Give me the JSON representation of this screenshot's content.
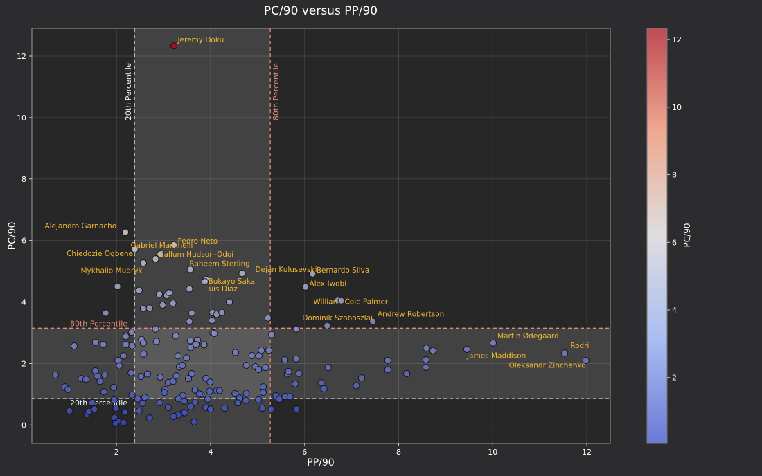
{
  "chart_data": {
    "type": "scatter",
    "title": "PC/90 versus PP/90",
    "xlabel": "PP/90",
    "ylabel": "PC/90",
    "xlim": [
      0.2,
      12.5
    ],
    "ylim": [
      -0.6,
      12.9
    ],
    "x_ticks": [
      2,
      4,
      6,
      8,
      10,
      12
    ],
    "y_ticks": [
      0,
      2,
      4,
      6,
      8,
      10,
      12
    ],
    "grid": true,
    "colorbar": {
      "label": "PC/90",
      "range": [
        0.05,
        12.33
      ],
      "ticks": [
        2,
        4,
        6,
        8,
        10,
        12
      ],
      "colormap": "coolwarm",
      "alpha": 0.8,
      "low_color": "#3b4cc0",
      "mid_color": "#dddddd",
      "high_color": "#b40426"
    },
    "thresholds": {
      "x_20th": 2.38,
      "x_80th": 5.27,
      "y_20th": 0.86,
      "y_80th": 3.15,
      "x_20th_label": "20th Percentile",
      "x_80th_label": "80th Percentile",
      "y_20th_label": "20th Percentile",
      "y_80th_label": "80th Percentile",
      "label_color_20th": "#f2f2f2",
      "label_color_80th": "#e08a7a",
      "line_color_20th": "#f2f2f2",
      "line_color_80th": "#e08a7a"
    },
    "label_color": "#f2b632",
    "labeled_points": [
      {
        "name": "Jeremy Doku",
        "x": 3.22,
        "y": 12.33,
        "label_x": 3.3,
        "label_y": 12.45,
        "anchor": "start"
      },
      {
        "name": "Alejandro Garnacho",
        "x": 2.19,
        "y": 6.27,
        "label_x": 2.0,
        "label_y": 6.4,
        "anchor": "end"
      },
      {
        "name": "Pedro Neto",
        "x": 3.22,
        "y": 5.86,
        "label_x": 3.3,
        "label_y": 5.9,
        "anchor": "start"
      },
      {
        "name": "Gabriel Martinelli",
        "x": 2.39,
        "y": 5.71,
        "label_x": 2.3,
        "label_y": 5.77,
        "anchor": "start"
      },
      {
        "name": "Chiedozie Ogbene",
        "x": 2.57,
        "y": 5.27,
        "label_x": 2.35,
        "label_y": 5.5,
        "anchor": "end"
      },
      {
        "name": "Callum Hudson-Odoi",
        "x": 2.93,
        "y": 5.56,
        "label_x": 2.9,
        "label_y": 5.48,
        "anchor": "start"
      },
      {
        "name": "Raheem Sterling",
        "x": 3.57,
        "y": 5.06,
        "label_x": 3.55,
        "label_y": 5.17,
        "anchor": "start"
      },
      {
        "name": "Dejan Kulusevski",
        "x": 4.67,
        "y": 4.93,
        "label_x": 4.95,
        "label_y": 4.98,
        "anchor": "start"
      },
      {
        "name": "Bernardo Silva",
        "x": 6.17,
        "y": 4.92,
        "label_x": 6.25,
        "label_y": 4.96,
        "anchor": "start"
      },
      {
        "name": "Mykhailo Mudryk",
        "x": 2.02,
        "y": 4.51,
        "label_x": 2.55,
        "label_y": 4.95,
        "anchor": "end"
      },
      {
        "name": "Bukayo Saka",
        "x": 3.9,
        "y": 4.74,
        "label_x": 3.95,
        "label_y": 4.6,
        "anchor": "start"
      },
      {
        "name": "Alex Iwobi",
        "x": 6.02,
        "y": 4.49,
        "label_x": 6.1,
        "label_y": 4.52,
        "anchor": "start"
      },
      {
        "name": "Luis Díaz",
        "x": 3.88,
        "y": 4.66,
        "label_x": 3.88,
        "label_y": 4.35,
        "anchor": "start"
      },
      {
        "name": "Willian",
        "x": 6.7,
        "y": 4.05,
        "label_x": 6.7,
        "label_y": 3.93,
        "anchor": "end"
      },
      {
        "name": "Cole Palmer",
        "x": 6.78,
        "y": 4.04,
        "label_x": 6.85,
        "label_y": 3.93,
        "anchor": "start"
      },
      {
        "name": "Andrew Robertson",
        "x": 7.45,
        "y": 3.37,
        "label_x": 7.55,
        "label_y": 3.53,
        "anchor": "start"
      },
      {
        "name": "Dominik Szoboszlai",
        "x": 6.48,
        "y": 3.23,
        "label_x": 5.95,
        "label_y": 3.4,
        "anchor": "start"
      },
      {
        "name": "Martin Ødegaard",
        "x": 10.01,
        "y": 2.67,
        "label_x": 10.1,
        "label_y": 2.82,
        "anchor": "start"
      },
      {
        "name": "Rodri",
        "x": 11.53,
        "y": 2.34,
        "label_x": 11.65,
        "label_y": 2.5,
        "anchor": "start"
      },
      {
        "name": "James Maddison",
        "x": 9.45,
        "y": 2.46,
        "label_x": 9.45,
        "label_y": 2.18,
        "anchor": "start"
      },
      {
        "name": "Oleksandr Zinchenko",
        "x": 11.98,
        "y": 2.1,
        "label_x": 11.98,
        "label_y": 1.86,
        "anchor": "end"
      }
    ],
    "points": [
      [
        3.22,
        12.33
      ],
      [
        2.19,
        6.27
      ],
      [
        3.22,
        5.86
      ],
      [
        2.39,
        5.71
      ],
      [
        2.57,
        5.27
      ],
      [
        2.93,
        5.56
      ],
      [
        2.83,
        5.4
      ],
      [
        3.57,
        5.06
      ],
      [
        4.67,
        4.93
      ],
      [
        6.17,
        4.92
      ],
      [
        2.02,
        4.51
      ],
      [
        3.9,
        4.74
      ],
      [
        3.88,
        4.66
      ],
      [
        6.02,
        4.49
      ],
      [
        2.48,
        4.38
      ],
      [
        2.91,
        4.25
      ],
      [
        3.07,
        4.21
      ],
      [
        3.12,
        4.3
      ],
      [
        3.55,
        4.43
      ],
      [
        4.4,
        4.0
      ],
      [
        3.2,
        3.96
      ],
      [
        2.98,
        3.9
      ],
      [
        2.7,
        3.8
      ],
      [
        2.57,
        3.78
      ],
      [
        1.77,
        3.64
      ],
      [
        3.6,
        3.64
      ],
      [
        4.04,
        3.66
      ],
      [
        4.13,
        3.6
      ],
      [
        4.24,
        3.66
      ],
      [
        4.03,
        3.4
      ],
      [
        3.55,
        3.37
      ],
      [
        5.22,
        3.48
      ],
      [
        5.82,
        3.12
      ],
      [
        6.48,
        3.23
      ],
      [
        6.7,
        4.05
      ],
      [
        6.78,
        4.04
      ],
      [
        7.45,
        3.37
      ],
      [
        2.32,
        3.02
      ],
      [
        2.83,
        3.12
      ],
      [
        4.05,
        3.0
      ],
      [
        4.08,
        2.98
      ],
      [
        5.3,
        2.94
      ],
      [
        2.2,
        2.88
      ],
      [
        3.26,
        2.9
      ],
      [
        3.72,
        2.76
      ],
      [
        2.53,
        2.78
      ],
      [
        2.85,
        2.72
      ],
      [
        3.57,
        2.74
      ],
      [
        1.55,
        2.69
      ],
      [
        1.72,
        2.62
      ],
      [
        2.2,
        2.62
      ],
      [
        2.33,
        2.58
      ],
      [
        2.57,
        2.67
      ],
      [
        3.69,
        2.62
      ],
      [
        3.86,
        2.61
      ],
      [
        1.1,
        2.57
      ],
      [
        3.58,
        2.52
      ],
      [
        5.08,
        2.43
      ],
      [
        5.24,
        2.43
      ],
      [
        8.59,
        2.5
      ],
      [
        8.73,
        2.42
      ],
      [
        9.45,
        2.46
      ],
      [
        10.01,
        2.67
      ],
      [
        11.53,
        2.34
      ],
      [
        11.98,
        2.1
      ],
      [
        2.58,
        2.31
      ],
      [
        2.15,
        2.25
      ],
      [
        3.31,
        2.25
      ],
      [
        4.53,
        2.36
      ],
      [
        4.88,
        2.26
      ],
      [
        5.03,
        2.25
      ],
      [
        5.58,
        2.12
      ],
      [
        5.82,
        2.15
      ],
      [
        7.77,
        2.1
      ],
      [
        8.58,
        2.12
      ],
      [
        2.03,
        2.1
      ],
      [
        3.49,
        2.18
      ],
      [
        2.06,
        1.93
      ],
      [
        3.34,
        1.89
      ],
      [
        3.4,
        1.94
      ],
      [
        4.76,
        1.94
      ],
      [
        4.95,
        1.9
      ],
      [
        5.17,
        1.87
      ],
      [
        5.02,
        1.81
      ],
      [
        6.5,
        1.87
      ],
      [
        7.77,
        1.8
      ],
      [
        8.58,
        1.88
      ],
      [
        1.55,
        1.76
      ],
      [
        2.31,
        1.7
      ],
      [
        2.66,
        1.66
      ],
      [
        3.6,
        1.67
      ],
      [
        5.63,
        1.66
      ],
      [
        5.66,
        1.74
      ],
      [
        5.88,
        1.68
      ],
      [
        8.17,
        1.67
      ],
      [
        0.7,
        1.63
      ],
      [
        1.59,
        1.59
      ],
      [
        1.75,
        1.63
      ],
      [
        2.52,
        1.58
      ],
      [
        2.93,
        1.56
      ],
      [
        3.27,
        1.6
      ],
      [
        7.21,
        1.53
      ],
      [
        1.25,
        1.51
      ],
      [
        1.35,
        1.49
      ],
      [
        1.65,
        1.42
      ],
      [
        3.1,
        1.38
      ],
      [
        3.2,
        1.42
      ],
      [
        3.53,
        1.51
      ],
      [
        3.9,
        1.52
      ],
      [
        3.99,
        1.4
      ],
      [
        5.8,
        1.34
      ],
      [
        6.35,
        1.37
      ],
      [
        7.1,
        1.28
      ],
      [
        0.9,
        1.24
      ],
      [
        0.97,
        1.16
      ],
      [
        1.94,
        1.22
      ],
      [
        3.03,
        1.15
      ],
      [
        5.12,
        1.24
      ],
      [
        6.41,
        1.18
      ],
      [
        3.67,
        1.14
      ],
      [
        3.98,
        1.1
      ],
      [
        4.13,
        1.12
      ],
      [
        4.19,
        1.12
      ],
      [
        1.73,
        1.08
      ],
      [
        3.02,
        1.06
      ],
      [
        3.8,
        0.99
      ],
      [
        4.52,
        1.02
      ],
      [
        4.76,
        1.03
      ],
      [
        5.12,
        1.06
      ],
      [
        2.33,
        0.98
      ],
      [
        3.41,
        0.96
      ],
      [
        3.76,
        1.01
      ],
      [
        5.39,
        0.95
      ],
      [
        5.58,
        0.93
      ],
      [
        5.69,
        0.92
      ],
      [
        2.45,
        0.85
      ],
      [
        2.6,
        0.9
      ],
      [
        3.32,
        0.85
      ],
      [
        3.94,
        0.84
      ],
      [
        4.62,
        0.88
      ],
      [
        5.02,
        0.82
      ],
      [
        5.46,
        0.84
      ],
      [
        1.95,
        0.82
      ],
      [
        3.44,
        0.78
      ],
      [
        3.67,
        0.74
      ],
      [
        4.58,
        0.72
      ],
      [
        4.75,
        0.8
      ],
      [
        1.48,
        0.72
      ],
      [
        2.55,
        0.71
      ],
      [
        2.92,
        0.73
      ],
      [
        3.58,
        0.6
      ],
      [
        1.99,
        0.55
      ],
      [
        3.1,
        0.57
      ],
      [
        4.3,
        0.55
      ],
      [
        5.1,
        0.55
      ],
      [
        3.9,
        0.56
      ],
      [
        4.0,
        0.52
      ],
      [
        5.29,
        0.52
      ],
      [
        5.83,
        0.52
      ],
      [
        1.0,
        0.46
      ],
      [
        1.53,
        0.52
      ],
      [
        2.48,
        0.46
      ],
      [
        2.18,
        0.42
      ],
      [
        3.41,
        0.4
      ],
      [
        3.45,
        0.4
      ],
      [
        3.31,
        0.33
      ],
      [
        3.21,
        0.28
      ],
      [
        1.37,
        0.36
      ],
      [
        1.41,
        0.44
      ],
      [
        2.7,
        0.23
      ],
      [
        1.96,
        0.24
      ],
      [
        2.03,
        0.12
      ],
      [
        2.15,
        0.08
      ],
      [
        1.98,
        0.05
      ],
      [
        3.65,
        0.1
      ]
    ]
  }
}
